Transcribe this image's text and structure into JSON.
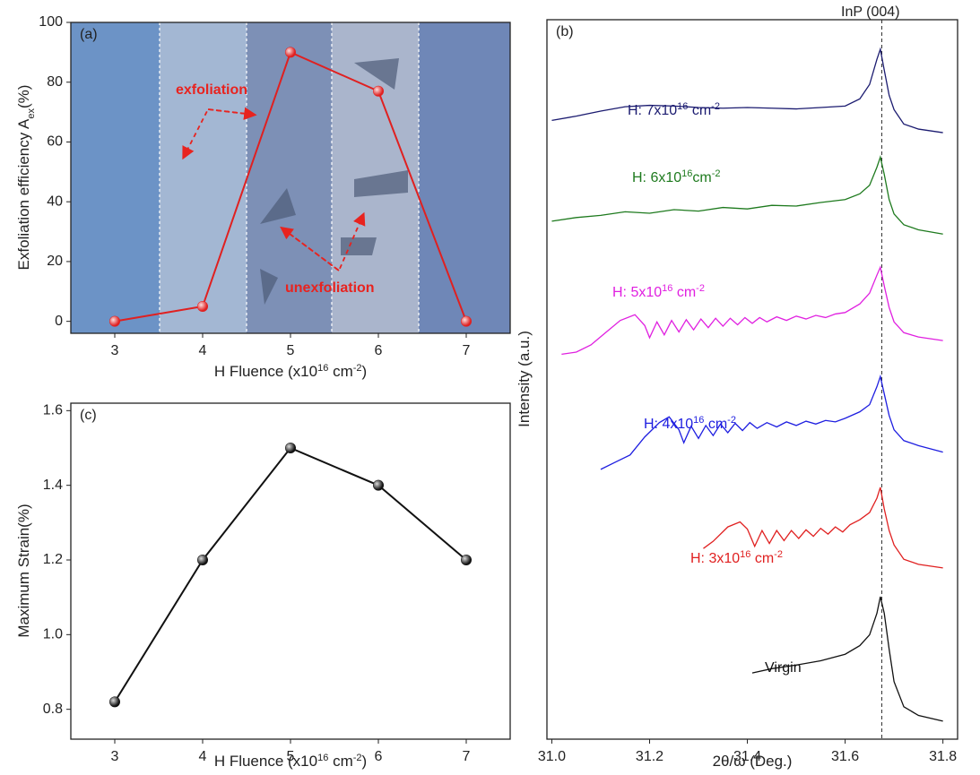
{
  "chart_data": [
    {
      "type": "line",
      "panel_label": "(a)",
      "color": "#e02020",
      "xlabel": [
        {
          "text": "H Fluence (x10"
        },
        {
          "text": "16",
          "sup": true
        },
        {
          "text": " cm"
        },
        {
          "text": "-2",
          "sup": true
        },
        {
          "text": ")"
        }
      ],
      "ylabel": [
        {
          "text": "Exfoliation efficiency A"
        },
        {
          "text": "ex",
          "sub": true
        },
        {
          "text": "(%)"
        }
      ],
      "x": [
        3,
        4,
        5,
        6,
        7
      ],
      "values": [
        0,
        5,
        90,
        77,
        0
      ],
      "xlim": [
        2.5,
        7.5
      ],
      "xticks": [
        3,
        4,
        5,
        6,
        7
      ],
      "ylim": [
        -4,
        100
      ],
      "yticks": [
        0,
        20,
        40,
        60,
        80,
        100
      ],
      "annotations": [
        {
          "text": "exfoliation"
        },
        {
          "text": "unexfoliation"
        }
      ]
    },
    {
      "type": "line",
      "panel_label": "(b)",
      "xlabel": [
        {
          "text": "2θ/ω (Deg.)"
        }
      ],
      "ylabel": [
        {
          "text": "Intensity (a.u.)"
        }
      ],
      "xlim": [
        30.99,
        31.83
      ],
      "xticks": [
        {
          "value": 31.0,
          "label": "31.0"
        },
        31.2,
        31.4,
        31.6,
        31.8
      ],
      "ylim": [
        0,
        100
      ],
      "reference_x": 31.675,
      "annotations": [
        {
          "text": "InP (004)"
        }
      ],
      "series": [
        {
          "label": [
            {
              "text": "H: 7x10"
            },
            {
              "text": "16",
              "sup": true
            },
            {
              "text": " cm"
            },
            {
              "text": "-2",
              "sup": true
            }
          ],
          "color": "#1b1b70",
          "x": [
            31.0,
            31.05,
            31.1,
            31.15,
            31.2,
            31.25,
            31.3,
            31.35,
            31.4,
            31.45,
            31.5,
            31.55,
            31.6,
            31.63,
            31.65,
            31.665,
            31.672,
            31.68,
            31.69,
            31.7,
            31.72,
            31.75,
            31.8
          ],
          "values": [
            86,
            86.6,
            87.3,
            87.9,
            88.1,
            88.0,
            87.8,
            87.7,
            87.8,
            87.7,
            87.6,
            87.8,
            88.0,
            89,
            91,
            94.5,
            95.9,
            93,
            89.5,
            87.5,
            85.5,
            84.8,
            84.3
          ]
        },
        {
          "label": [
            {
              "text": "H: 6x10"
            },
            {
              "text": "16",
              "sup": true
            },
            {
              "text": "cm"
            },
            {
              "text": "-2",
              "sup": true
            }
          ],
          "color": "#1e7a1e",
          "x": [
            31.0,
            31.05,
            31.1,
            31.15,
            31.2,
            31.25,
            31.3,
            31.35,
            31.4,
            31.45,
            31.5,
            31.55,
            31.6,
            31.63,
            31.65,
            31.665,
            31.672,
            31.68,
            31.69,
            31.7,
            31.72,
            31.75,
            31.8
          ],
          "values": [
            72,
            72.5,
            72.8,
            73.3,
            73.1,
            73.6,
            73.4,
            73.9,
            73.7,
            74.2,
            74.1,
            74.6,
            75,
            75.8,
            77,
            79.5,
            80.9,
            78.5,
            75,
            73,
            71.5,
            70.8,
            70.2
          ]
        },
        {
          "label": [
            {
              "text": "H: 5x10"
            },
            {
              "text": "16",
              "sup": true
            },
            {
              "text": " cm"
            },
            {
              "text": "-2",
              "sup": true
            }
          ],
          "color": "#e020e0",
          "x": [
            31.02,
            31.05,
            31.08,
            31.11,
            31.14,
            31.17,
            31.19,
            31.2,
            31.215,
            31.23,
            31.245,
            31.26,
            31.275,
            31.29,
            31.305,
            31.32,
            31.335,
            31.35,
            31.365,
            31.38,
            31.395,
            31.41,
            31.425,
            31.44,
            31.46,
            31.48,
            31.5,
            31.52,
            31.54,
            31.56,
            31.58,
            31.6,
            31.63,
            31.65,
            31.665,
            31.672,
            31.68,
            31.69,
            31.7,
            31.72,
            31.75,
            31.8
          ],
          "values": [
            53.5,
            53.8,
            54.8,
            56.5,
            58.2,
            59,
            57.5,
            55.8,
            58,
            56.2,
            58.2,
            56.6,
            58.3,
            56.9,
            58.4,
            57.2,
            58.5,
            57.4,
            58.5,
            57.6,
            58.6,
            57.8,
            58.6,
            58.0,
            58.7,
            58.2,
            58.8,
            58.4,
            58.9,
            58.6,
            59.1,
            59.3,
            60.5,
            62,
            64.5,
            65.6,
            63,
            60,
            58,
            56.5,
            55.9,
            55.4
          ]
        },
        {
          "label": [
            {
              "text": "H: 4x10"
            },
            {
              "text": "16",
              "sup": true
            },
            {
              "text": " cm"
            },
            {
              "text": "-2",
              "sup": true
            }
          ],
          "color": "#1e1ee0",
          "x": [
            31.1,
            31.13,
            31.16,
            31.19,
            31.22,
            31.24,
            31.26,
            31.27,
            31.285,
            31.3,
            31.315,
            31.33,
            31.345,
            31.36,
            31.375,
            31.39,
            31.405,
            31.42,
            31.44,
            31.46,
            31.48,
            31.5,
            31.52,
            31.54,
            31.56,
            31.58,
            31.6,
            31.63,
            31.65,
            31.665,
            31.672,
            31.68,
            31.69,
            31.7,
            31.72,
            31.75,
            31.8
          ],
          "values": [
            37.5,
            38.5,
            39.5,
            42,
            44,
            44.8,
            43,
            41.2,
            43.5,
            41.8,
            43.6,
            42.2,
            43.8,
            42.6,
            43.9,
            42.9,
            44,
            43.2,
            44,
            43.4,
            44.1,
            43.6,
            44.2,
            43.8,
            44.3,
            44.1,
            44.6,
            45.5,
            46.5,
            49,
            50.4,
            48,
            45,
            43,
            41.5,
            40.8,
            39.9
          ]
        },
        {
          "label": [
            {
              "text": "H: 3x10"
            },
            {
              "text": "16",
              "sup": true
            },
            {
              "text": " cm"
            },
            {
              "text": "-2",
              "sup": true
            }
          ],
          "color": "#e02020",
          "x": [
            31.31,
            31.33,
            31.36,
            31.385,
            31.4,
            31.415,
            31.43,
            31.445,
            31.46,
            31.475,
            31.49,
            31.505,
            31.52,
            31.535,
            31.55,
            31.565,
            31.58,
            31.595,
            31.61,
            31.63,
            31.65,
            31.665,
            31.672,
            31.68,
            31.69,
            31.7,
            31.72,
            31.75,
            31.8
          ],
          "values": [
            26.5,
            27.5,
            29.5,
            30.2,
            29.2,
            26.8,
            29.0,
            27.2,
            29.0,
            27.6,
            29.0,
            27.9,
            29.1,
            28.2,
            29.3,
            28.5,
            29.5,
            28.8,
            29.8,
            30.5,
            31.5,
            33.5,
            35,
            32,
            29,
            27,
            25,
            24.3,
            23.8
          ]
        },
        {
          "label": [
            {
              "text": "Virgin"
            }
          ],
          "color": "#111111",
          "x": [
            31.41,
            31.45,
            31.5,
            31.55,
            31.6,
            31.63,
            31.65,
            31.665,
            31.672,
            31.68,
            31.69,
            31.7,
            31.72,
            31.75,
            31.8
          ],
          "values": [
            9.2,
            9.8,
            10.3,
            10.9,
            11.8,
            13,
            14.5,
            17.5,
            19.8,
            17.5,
            12.5,
            8,
            4.5,
            3.3,
            2.5
          ]
        }
      ]
    },
    {
      "type": "line",
      "panel_label": "(c)",
      "color": "#111111",
      "xlabel": [
        {
          "text": "H Fluence (x10"
        },
        {
          "text": "16",
          "sup": true
        },
        {
          "text": " cm"
        },
        {
          "text": "-2",
          "sup": true
        },
        {
          "text": ")"
        }
      ],
      "ylabel": [
        {
          "text": "Maximum Strain(%)"
        }
      ],
      "x": [
        3,
        4,
        5,
        6,
        7
      ],
      "values": [
        0.82,
        1.2,
        1.5,
        1.4,
        1.2
      ],
      "xlim": [
        2.5,
        7.5
      ],
      "xticks": [
        3,
        4,
        5,
        6,
        7
      ],
      "ylim": [
        0.72,
        1.62
      ],
      "yticks": [
        0.8,
        {
          "value": 1.0,
          "label": "1.0"
        },
        1.2,
        1.4,
        1.6
      ]
    }
  ]
}
